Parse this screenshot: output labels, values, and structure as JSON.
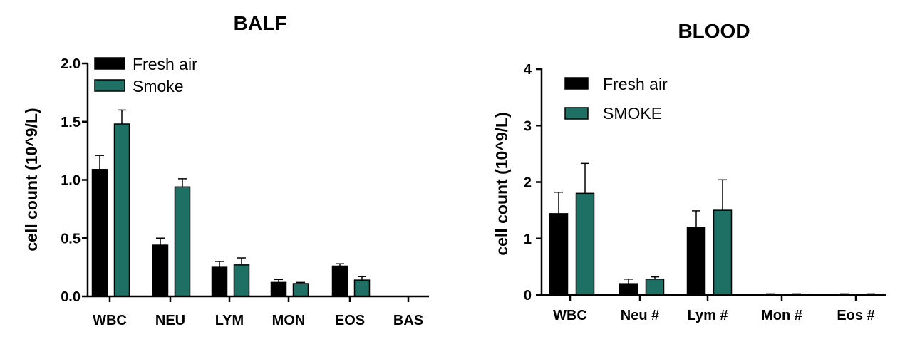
{
  "chart_data": [
    {
      "id": "balf",
      "type": "bar",
      "title": "BALF",
      "ylabel": "cell count (10^9/L)",
      "xlabel": "",
      "ylim": [
        0,
        2.0
      ],
      "yticks": [
        "0.0",
        "0.5",
        "1.0",
        "1.5",
        "2.0"
      ],
      "yticks_values": [
        0,
        0.5,
        1.0,
        1.5,
        2.0
      ],
      "categories": [
        "WBC",
        "NEU",
        "LYM",
        "MON",
        "EOS",
        "BAS"
      ],
      "series": [
        {
          "name": "Fresh air",
          "color": "#000000",
          "values": [
            1.09,
            0.44,
            0.25,
            0.12,
            0.26,
            0.0
          ],
          "errors": [
            0.12,
            0.06,
            0.05,
            0.025,
            0.02,
            0.0
          ]
        },
        {
          "name": "Smoke",
          "color": "#1e7065",
          "values": [
            1.48,
            0.94,
            0.27,
            0.11,
            0.14,
            0.0
          ],
          "errors": [
            0.12,
            0.07,
            0.06,
            0.01,
            0.03,
            0.0
          ]
        }
      ],
      "legend": "top-left"
    },
    {
      "id": "blood",
      "type": "bar",
      "title": "BLOOD",
      "ylabel": "cell count (10^9/L)",
      "xlabel": "",
      "ylim": [
        0,
        4
      ],
      "yticks": [
        "0",
        "1",
        "2",
        "3",
        "4"
      ],
      "yticks_values": [
        0,
        1,
        2,
        3,
        4
      ],
      "categories": [
        "WBC",
        "Neu #",
        "Lym #",
        "Mon #",
        "Eos #"
      ],
      "series": [
        {
          "name": "Fresh air",
          "color": "#000000",
          "values": [
            1.44,
            0.2,
            1.2,
            0.01,
            0.01
          ],
          "errors": [
            0.38,
            0.08,
            0.29,
            0.01,
            0.01
          ]
        },
        {
          "name": "SMOKE",
          "color": "#1e7065",
          "values": [
            1.8,
            0.28,
            1.5,
            0.01,
            0.01
          ],
          "errors": [
            0.53,
            0.04,
            0.54,
            0.01,
            0.01
          ]
        }
      ],
      "legend": "top-left"
    }
  ]
}
